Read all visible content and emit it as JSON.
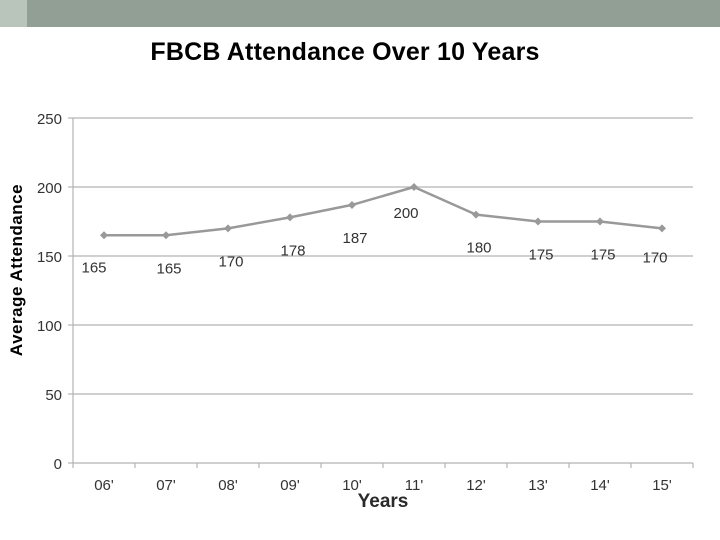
{
  "colors": {
    "band_light": "#b9c4bb",
    "band_dark": "#929f94",
    "line": "#999999",
    "grid": "#b3b3b3",
    "tick_text": "#333333"
  },
  "chart_data": {
    "type": "line",
    "title": "FBCB Attendance Over 10 Years",
    "xlabel": "Years",
    "ylabel": "Average Attendance",
    "categories": [
      "06'",
      "07'",
      "08'",
      "09'",
      "10'",
      "11'",
      "12'",
      "13'",
      "14'",
      "15'"
    ],
    "series": [
      {
        "values": [
          165,
          165,
          170,
          178,
          187,
          200,
          180,
          175,
          175,
          170
        ]
      }
    ],
    "data_labels": [
      "165",
      "165",
      "170",
      "178",
      "187",
      "200",
      "180",
      "175",
      "175",
      "170"
    ],
    "ylim": [
      0,
      250
    ],
    "yticks": [
      0,
      50,
      100,
      150,
      200,
      250
    ],
    "grid": true,
    "legend": "none",
    "marker": "diamond"
  }
}
